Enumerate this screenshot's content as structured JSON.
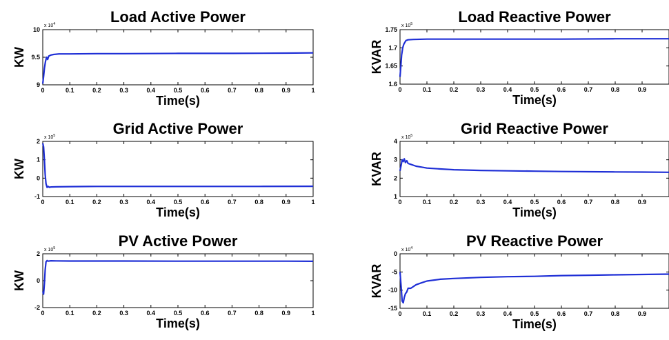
{
  "chart_data": [
    {
      "type": "line",
      "title": "Load Active Power",
      "xlabel": "Time(s)",
      "ylabel": "KW",
      "exponent": "x 10^4",
      "xlim": [
        0,
        1
      ],
      "ylim": [
        9,
        10
      ],
      "xticks": [
        0,
        0.1,
        0.2,
        0.3,
        0.4,
        0.5,
        0.6,
        0.7,
        0.8,
        0.9,
        1
      ],
      "xtick_labels": [
        "0",
        "0.1",
        "0.2",
        "0.3",
        "0.4",
        "0.5",
        "0.6",
        "0.7",
        "0.8",
        "0.9",
        "1"
      ],
      "yticks": [
        9,
        9.5,
        10
      ],
      "ytick_labels": [
        "9",
        "9.5",
        "10"
      ],
      "grid": false,
      "color": "#1f2fd6",
      "series": [
        {
          "x": [
            0,
            0.003,
            0.006,
            0.01,
            0.014,
            0.018,
            0.022,
            0.03,
            0.04,
            0.06,
            0.1,
            0.2,
            0.3,
            0.5,
            0.7,
            0.9,
            1.0
          ],
          "y": [
            9.02,
            9.15,
            9.3,
            9.42,
            9.5,
            9.46,
            9.52,
            9.54,
            9.55,
            9.56,
            9.56,
            9.565,
            9.565,
            9.57,
            9.57,
            9.575,
            9.58
          ]
        }
      ]
    },
    {
      "type": "line",
      "title": "Load Reactive Power",
      "xlabel": "Time(s)",
      "ylabel": "KVAR",
      "exponent": "x 10^5",
      "xlim": [
        0,
        1
      ],
      "ylim": [
        1.6,
        1.75
      ],
      "xticks": [
        0,
        0.1,
        0.2,
        0.3,
        0.4,
        0.5,
        0.6,
        0.7,
        0.8,
        0.9
      ],
      "xtick_labels": [
        "0",
        "0.1",
        "0.2",
        "0.3",
        "0.4",
        "0.5",
        "0.6",
        "0.7",
        "0.8",
        "0.9"
      ],
      "yticks": [
        1.6,
        1.65,
        1.7,
        1.75
      ],
      "ytick_labels": [
        "1.6",
        "1.65",
        "1.7",
        "1.75"
      ],
      "grid": false,
      "color": "#1f2fd6",
      "series": [
        {
          "x": [
            0,
            0.003,
            0.006,
            0.01,
            0.014,
            0.018,
            0.022,
            0.03,
            0.05,
            0.1,
            0.2,
            0.4,
            0.6,
            0.8,
            1.0
          ],
          "y": [
            1.62,
            1.65,
            1.68,
            1.7,
            1.71,
            1.715,
            1.72,
            1.722,
            1.723,
            1.724,
            1.724,
            1.724,
            1.724,
            1.725,
            1.725
          ]
        }
      ]
    },
    {
      "type": "line",
      "title": "Grid Active Power",
      "xlabel": "Time(s)",
      "ylabel": "KW",
      "exponent": "x 10^5",
      "xlim": [
        0,
        1
      ],
      "ylim": [
        -1,
        2
      ],
      "xticks": [
        0,
        0.1,
        0.2,
        0.3,
        0.4,
        0.5,
        0.6,
        0.7,
        0.8,
        0.9,
        1
      ],
      "xtick_labels": [
        "0",
        "0.1",
        "0.2",
        "0.3",
        "0.4",
        "0.5",
        "0.6",
        "0.7",
        "0.8",
        "0.9",
        "1"
      ],
      "yticks": [
        -1,
        0,
        1,
        2
      ],
      "ytick_labels": [
        "-1",
        "0",
        "1",
        "2"
      ],
      "grid": false,
      "color": "#1f2fd6",
      "series": [
        {
          "x": [
            0,
            0.003,
            0.006,
            0.009,
            0.012,
            0.016,
            0.02,
            0.025,
            0.03,
            0.05,
            0.1,
            0.2,
            0.4,
            0.6,
            0.8,
            1.0
          ],
          "y": [
            1.9,
            1.7,
            1.0,
            0.2,
            -0.3,
            -0.5,
            -0.45,
            -0.5,
            -0.48,
            -0.47,
            -0.46,
            -0.45,
            -0.45,
            -0.45,
            -0.45,
            -0.44
          ]
        }
      ]
    },
    {
      "type": "line",
      "title": "Grid Reactive Power",
      "xlabel": "Time(s)",
      "ylabel": "KVAR",
      "exponent": "x 10^5",
      "xlim": [
        0,
        1
      ],
      "ylim": [
        1,
        4
      ],
      "xticks": [
        0,
        0.1,
        0.2,
        0.3,
        0.4,
        0.5,
        0.6,
        0.7,
        0.8,
        0.9
      ],
      "xtick_labels": [
        "0",
        "0.1",
        "0.2",
        "0.3",
        "0.4",
        "0.5",
        "0.6",
        "0.7",
        "0.8",
        "0.9"
      ],
      "yticks": [
        1,
        2,
        3,
        4
      ],
      "ytick_labels": [
        "1",
        "2",
        "3",
        "4"
      ],
      "grid": false,
      "color": "#1f2fd6",
      "series": [
        {
          "x": [
            0,
            0.004,
            0.008,
            0.012,
            0.016,
            0.02,
            0.025,
            0.03,
            0.04,
            0.06,
            0.08,
            0.1,
            0.15,
            0.2,
            0.3,
            0.4,
            0.5,
            0.6,
            0.7,
            0.8,
            0.9,
            1.0
          ],
          "y": [
            2.4,
            2.7,
            3.0,
            2.9,
            3.05,
            2.85,
            2.95,
            2.8,
            2.75,
            2.65,
            2.6,
            2.55,
            2.5,
            2.46,
            2.42,
            2.4,
            2.38,
            2.36,
            2.35,
            2.34,
            2.33,
            2.32
          ]
        }
      ]
    },
    {
      "type": "line",
      "title": "PV Active Power",
      "xlabel": "Time(s)",
      "ylabel": "KW",
      "exponent": "x 10^5",
      "xlim": [
        0,
        1
      ],
      "ylim": [
        -2,
        2
      ],
      "xticks": [
        0,
        0.1,
        0.2,
        0.3,
        0.4,
        0.5,
        0.6,
        0.7,
        0.8,
        0.9,
        1
      ],
      "xtick_labels": [
        "0",
        "0.1",
        "0.2",
        "0.3",
        "0.4",
        "0.5",
        "0.6",
        "0.7",
        "0.8",
        "0.9",
        "1"
      ],
      "yticks": [
        -2,
        0,
        2
      ],
      "ytick_labels": [
        "-2",
        "0",
        "2"
      ],
      "grid": false,
      "color": "#1f2fd6",
      "series": [
        {
          "x": [
            0,
            0.003,
            0.006,
            0.009,
            0.012,
            0.016,
            0.02,
            0.03,
            0.05,
            0.1,
            0.3,
            0.5,
            0.7,
            0.9,
            1.0
          ],
          "y": [
            -0.8,
            -1.0,
            -0.2,
            0.8,
            1.4,
            1.5,
            1.45,
            1.48,
            1.47,
            1.46,
            1.46,
            1.45,
            1.45,
            1.45,
            1.44
          ]
        }
      ]
    },
    {
      "type": "line",
      "title": "PV Reactive Power",
      "xlabel": "Time(s)",
      "ylabel": "KVAR",
      "exponent": "x 10^4",
      "xlim": [
        0,
        1
      ],
      "ylim": [
        -15,
        0
      ],
      "xticks": [
        0,
        0.1,
        0.2,
        0.3,
        0.4,
        0.5,
        0.6,
        0.7,
        0.8,
        0.9
      ],
      "xtick_labels": [
        "0",
        "0.1",
        "0.2",
        "0.3",
        "0.4",
        "0.5",
        "0.6",
        "0.7",
        "0.8",
        "0.9"
      ],
      "yticks": [
        -15,
        -10,
        -5,
        0
      ],
      "ytick_labels": [
        "-15",
        "-10",
        "-5",
        "0"
      ],
      "grid": false,
      "color": "#1f2fd6",
      "series": [
        {
          "x": [
            0,
            0.004,
            0.008,
            0.012,
            0.016,
            0.02,
            0.025,
            0.03,
            0.04,
            0.06,
            0.08,
            0.1,
            0.15,
            0.2,
            0.3,
            0.4,
            0.5,
            0.6,
            0.7,
            0.8,
            0.9,
            1.0
          ],
          "y": [
            -5,
            -9,
            -13,
            -13.5,
            -12,
            -11,
            -10.5,
            -9.5,
            -9.5,
            -8.5,
            -8.0,
            -7.5,
            -7.0,
            -6.8,
            -6.5,
            -6.3,
            -6.2,
            -6.0,
            -5.9,
            -5.8,
            -5.7,
            -5.6
          ]
        }
      ]
    }
  ]
}
